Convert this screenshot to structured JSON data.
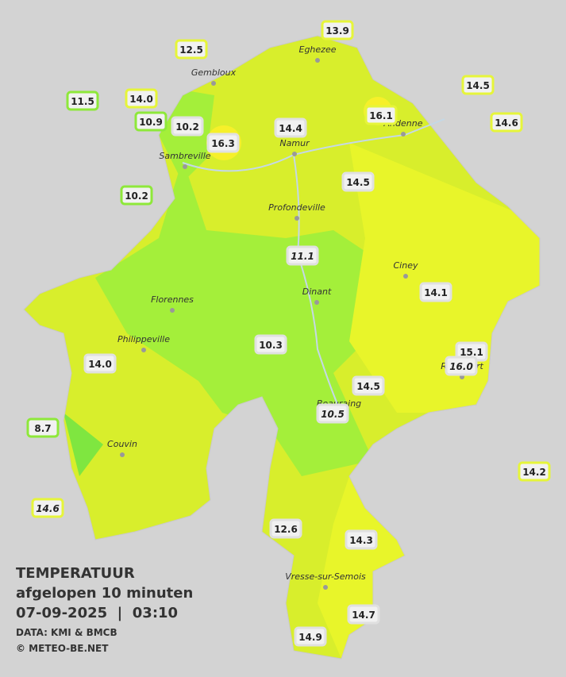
{
  "title": "TEMPERATUUR",
  "subtitle": "afgelopen 10 minuten",
  "datetime": "07-09-2025  |  03:10",
  "source": "DATA: KMI & BMCB",
  "copyright": "© METEO-BE.NET",
  "cities": [
    "Eghezee",
    "Gembloux",
    "Andenne",
    "Namur",
    "Sambreville",
    "Profondeville",
    "Ciney",
    "Florennes",
    "Dinant",
    "Philippeville",
    "Rochefort",
    "Beauraing",
    "Couvin",
    "Vresse-sur-Semois"
  ],
  "stations": [
    "13.9",
    "12.5",
    "14.5",
    "11.5",
    "14.0",
    "16.1",
    "14.6",
    "10.9",
    "10.2",
    "14.4",
    "16.3",
    "14.5",
    "10.2",
    "11.1",
    "14.1",
    "10.3",
    "15.1",
    "16.0",
    "14.0",
    "14.5",
    "10.5",
    "8.7",
    "14.2",
    "14.6",
    "12.6",
    "14.3",
    "14.7",
    "14.9"
  ]
}
